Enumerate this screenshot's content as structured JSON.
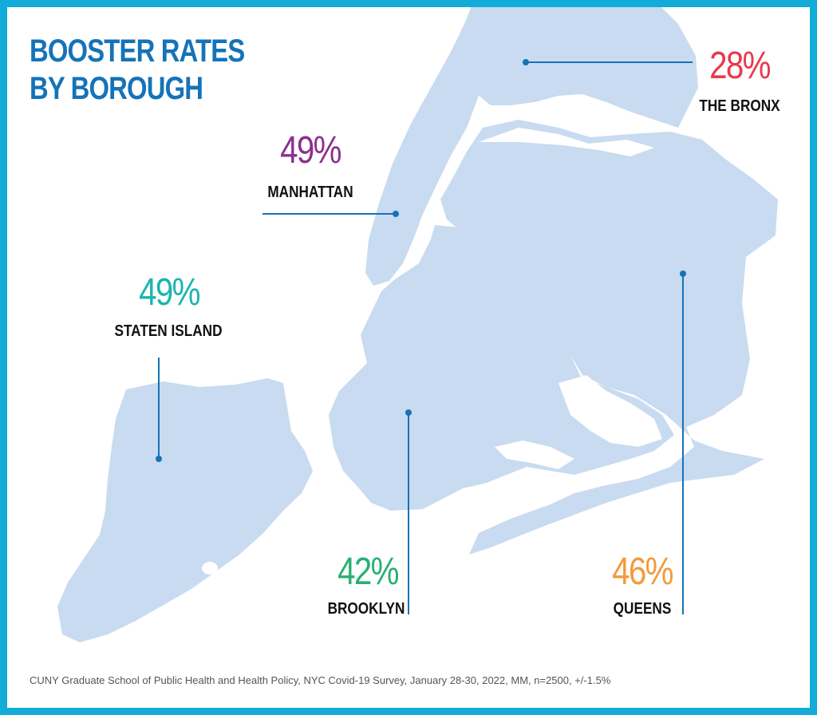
{
  "title": {
    "line1": "BOOSTER RATES",
    "line2": "BY BOROUGH"
  },
  "colors": {
    "border": "#12acd9",
    "land": "#c8dbf0",
    "leader": "#1573b8",
    "title": "#1573b8"
  },
  "boroughs": {
    "bronx": {
      "name": "THE BRONX",
      "rate": "28%",
      "color": "#e8394d"
    },
    "manhattan": {
      "name": "MANHATTAN",
      "rate": "49%",
      "color": "#8b2f8f"
    },
    "staten_island": {
      "name": "STATEN ISLAND",
      "rate": "49%",
      "color": "#1ab5ad"
    },
    "brooklyn": {
      "name": "BROOKLYN",
      "rate": "42%",
      "color": "#27b074"
    },
    "queens": {
      "name": "QUEENS",
      "rate": "46%",
      "color": "#f49a3a"
    }
  },
  "source": "CUNY Graduate School of Public Health and Health Policy, NYC Covid-19 Survey, January 28-30, 2022, MM, n=2500, +/-1.5%"
}
